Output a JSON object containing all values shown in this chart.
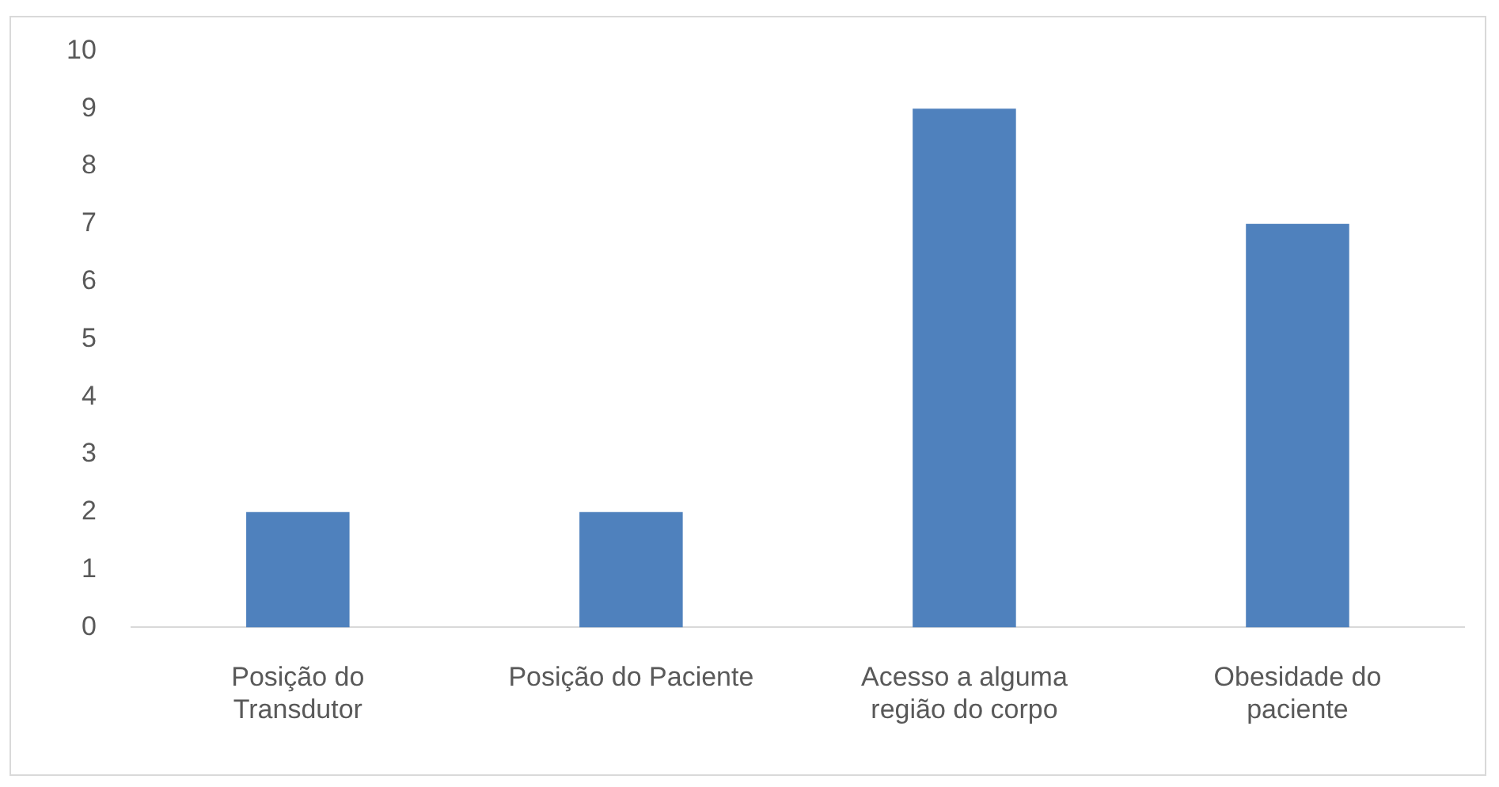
{
  "chart_data": {
    "type": "bar",
    "categories": [
      "Posição do Transdutor",
      "Posição do Paciente",
      "Acesso a alguma região do corpo",
      "Obesidade do paciente"
    ],
    "values": [
      2,
      2,
      9,
      7
    ],
    "color": "#4f81bd",
    "ylim": [
      0,
      10
    ],
    "yticks": [
      0,
      1,
      2,
      3,
      4,
      5,
      6,
      7,
      8,
      9,
      10
    ],
    "grid": false,
    "legend": false
  }
}
